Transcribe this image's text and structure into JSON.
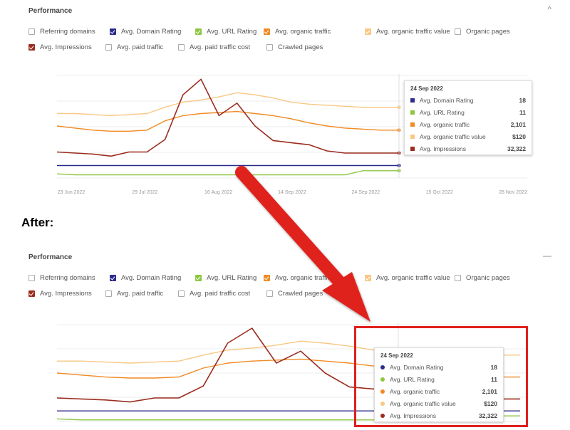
{
  "after_label": "After:",
  "panels": [
    {
      "id": "before",
      "title": "Performance",
      "collapse_glyph": "^",
      "metrics_row1": [
        {
          "label": "Referring domains",
          "checked": false,
          "color": "#aaaaaa"
        },
        {
          "label": "Avg. Domain Rating",
          "checked": true,
          "color": "#2c2c8c"
        },
        {
          "label": "Avg. URL Rating",
          "checked": true,
          "color": "#8cc63f"
        },
        {
          "label": "Avg. organic traffic",
          "checked": true,
          "color": "#f08a24"
        },
        {
          "label": "Avg. organic traffic value",
          "checked": true,
          "color": "#f8c884"
        },
        {
          "label": "Organic pages",
          "checked": false,
          "color": "#aaaaaa"
        }
      ],
      "metrics_row2": [
        {
          "label": "Avg. Impressions",
          "checked": true,
          "color": "#9b2d1f"
        },
        {
          "label": "Avg. paid traffic",
          "checked": false,
          "color": "#aaaaaa"
        },
        {
          "label": "Avg. paid traffic cost",
          "checked": false,
          "color": "#aaaaaa"
        },
        {
          "label": "Crawled pages",
          "checked": false,
          "color": "#aaaaaa"
        }
      ],
      "x_ticks": [
        "23 Jun 2022",
        "29 Jul 2022",
        "16 Aug 2022",
        "14 Sep 2022",
        "24 Sep 2022",
        "15 Oct 2022",
        "28 Nov 2022"
      ],
      "tooltip": {
        "date": "24 Sep 2022",
        "rows": [
          {
            "label": "Avg. Domain Rating",
            "value": "18",
            "color": "#2c2c8c"
          },
          {
            "label": "Avg. URL Rating",
            "value": "11",
            "color": "#8cc63f"
          },
          {
            "label": "Avg. organic traffic",
            "value": "2,101",
            "color": "#f08a24"
          },
          {
            "label": "Avg. organic traffic value",
            "value": "$120",
            "color": "#f8c884"
          },
          {
            "label": "Avg. Impressions",
            "value": "32,322",
            "color": "#9b2d1f"
          }
        ]
      }
    },
    {
      "id": "after",
      "title": "Performance",
      "collapse_glyph": "—",
      "metrics_row1": [
        {
          "label": "Referring domains",
          "checked": false,
          "color": "#aaaaaa"
        },
        {
          "label": "Avg. Domain Rating",
          "checked": true,
          "color": "#2c2c8c"
        },
        {
          "label": "Avg. URL Rating",
          "checked": true,
          "color": "#8cc63f"
        },
        {
          "label": "Avg. organic traffic",
          "checked": true,
          "color": "#f08a24"
        },
        {
          "label": "Avg. organic traffic value",
          "checked": true,
          "color": "#f8c884"
        },
        {
          "label": "Organic pages",
          "checked": false,
          "color": "#aaaaaa"
        }
      ],
      "metrics_row2": [
        {
          "label": "Avg. Impressions",
          "checked": true,
          "color": "#9b2d1f"
        },
        {
          "label": "Avg. paid traffic",
          "checked": false,
          "color": "#aaaaaa"
        },
        {
          "label": "Avg. paid traffic cost",
          "checked": false,
          "color": "#aaaaaa"
        },
        {
          "label": "Crawled pages",
          "checked": false,
          "color": "#aaaaaa"
        }
      ],
      "tooltip": {
        "date": "24 Sep 2022",
        "rows": [
          {
            "label": "Avg. Domain Rating",
            "value": "18",
            "color": "#2c2c8c"
          },
          {
            "label": "Avg. URL Rating",
            "value": "11",
            "color": "#8cc63f"
          },
          {
            "label": "Avg. organic traffic",
            "value": "2,101",
            "color": "#f08a24"
          },
          {
            "label": "Avg. organic traffic value",
            "value": "$120",
            "color": "#f8c884"
          },
          {
            "label": "Avg. Impressions",
            "value": "32,322",
            "color": "#9b2d1f"
          }
        ]
      }
    }
  ],
  "chart_data": {
    "type": "line",
    "grid": true,
    "legend": "none",
    "x_points": 20,
    "series": [
      {
        "name": "Avg. Domain Rating",
        "color": "#2c2c8c",
        "values": [
          12,
          12,
          12,
          12,
          12,
          12,
          12,
          12,
          12,
          12,
          12,
          12,
          12,
          12,
          12,
          12,
          12,
          12,
          12,
          12
        ]
      },
      {
        "name": "Avg. URL Rating",
        "color": "#8cc63f",
        "values": [
          4,
          3,
          3,
          3,
          3,
          3,
          3,
          3,
          3,
          3,
          3,
          3,
          3,
          3,
          3,
          3,
          3,
          7,
          7,
          7
        ]
      },
      {
        "name": "Avg. organic traffic",
        "color": "#f08a24",
        "values": [
          50,
          48,
          46,
          45,
          45,
          46,
          55,
          60,
          62,
          63,
          64,
          62,
          60,
          57,
          53,
          50,
          48,
          47,
          46,
          46
        ]
      },
      {
        "name": "Avg. organic traffic value",
        "color": "#f8c884",
        "values": [
          62,
          62,
          61,
          60,
          61,
          62,
          68,
          73,
          75,
          78,
          82,
          80,
          77,
          73,
          71,
          70,
          69,
          68,
          68,
          68
        ]
      },
      {
        "name": "Avg. Impressions",
        "color": "#9b2d1f",
        "values": [
          25,
          24,
          23,
          21,
          25,
          25,
          37,
          80,
          95,
          60,
          72,
          50,
          36,
          34,
          32,
          26,
          24,
          24,
          24,
          24
        ]
      }
    ],
    "ylim": [
      0,
      100
    ]
  }
}
